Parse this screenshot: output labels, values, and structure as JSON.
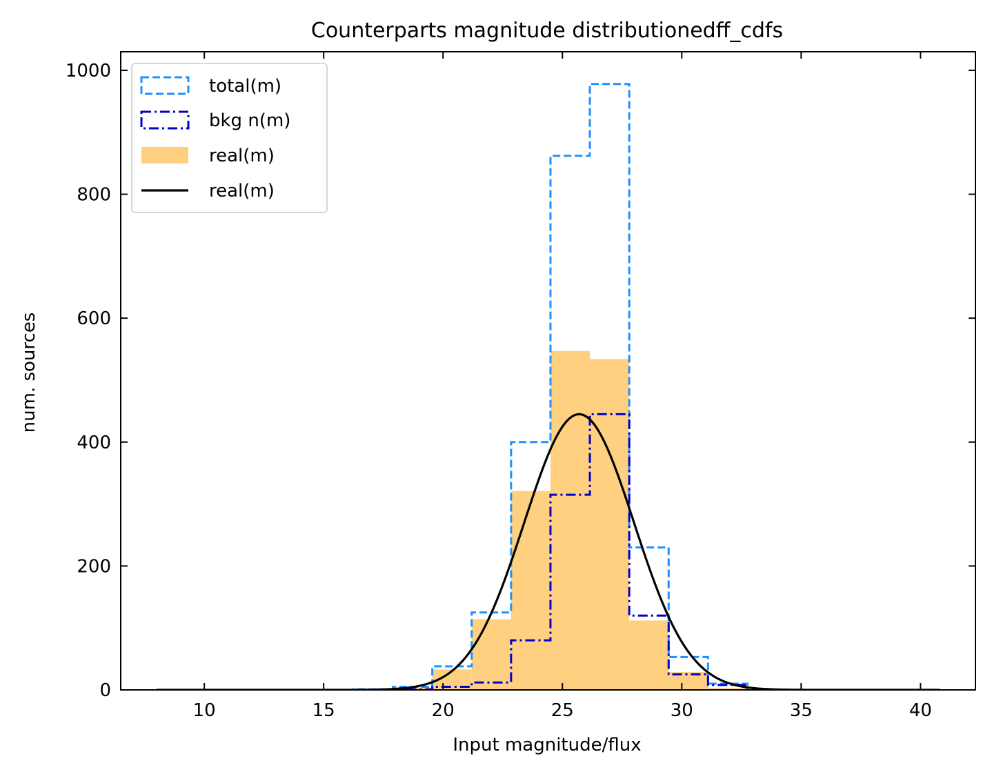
{
  "chart_data": {
    "type": "bar",
    "title": "Counterparts magnitude distributionedff_cdfs",
    "xlabel": "Input magnitude/flux",
    "ylabel": "num. sources",
    "xlim": [
      6.5,
      42.3
    ],
    "ylim": [
      0,
      1030
    ],
    "xticks": [
      10,
      15,
      20,
      25,
      30,
      35,
      40
    ],
    "yticks": [
      0,
      200,
      400,
      600,
      800,
      1000
    ],
    "tick_direction": "in",
    "grid": false,
    "legend_position": "upper-left",
    "bin_edges": [
      14.6,
      16.25,
      17.9,
      19.55,
      21.2,
      22.85,
      24.5,
      26.15,
      27.8,
      29.45,
      31.1,
      32.75
    ],
    "series": [
      {
        "name": "total(m)",
        "style": "step-dashed",
        "color": "#1e90ff",
        "values": [
          0,
          1,
          5,
          38,
          125,
          400,
          862,
          978,
          230,
          53,
          10
        ]
      },
      {
        "name": "bkg n(m)",
        "style": "step-dashdot",
        "color": "#0000cd",
        "values": [
          0,
          0,
          1,
          5,
          12,
          80,
          315,
          445,
          120,
          25,
          8
        ]
      },
      {
        "name": "real(m)",
        "style": "filled",
        "color": "#fed07f",
        "values": [
          0,
          1,
          4,
          33,
          114,
          321,
          547,
          534,
          112,
          29,
          3
        ]
      },
      {
        "name": "real(m)",
        "style": "line",
        "color": "#000000",
        "gaussian": {
          "amplitude": 445,
          "mean": 25.7,
          "sigma": 2.3
        },
        "x_range": [
          8.0,
          40.8
        ]
      }
    ]
  }
}
